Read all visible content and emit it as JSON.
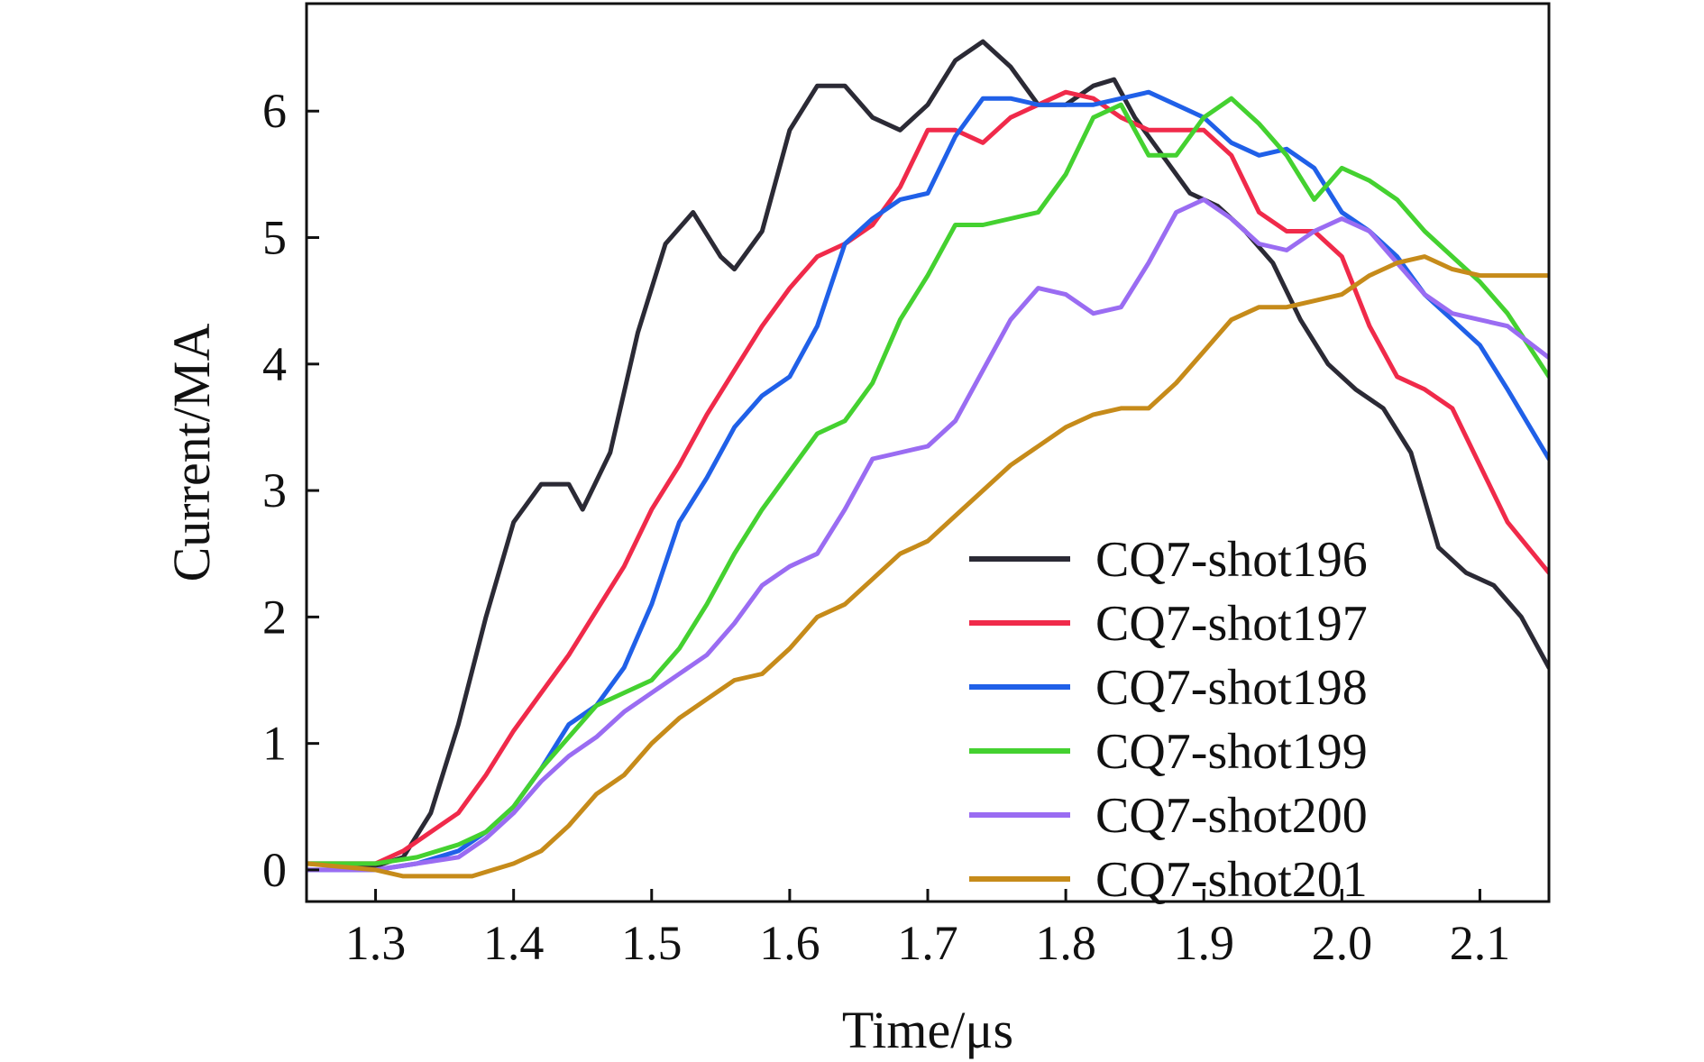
{
  "chart_data": {
    "type": "line",
    "title": "",
    "xlabel": "Time/μs",
    "ylabel": "Current/MA",
    "xlim": [
      1.25,
      2.15
    ],
    "ylim": [
      -0.25,
      6.85
    ],
    "xticks": [
      1.3,
      1.4,
      1.5,
      1.6,
      1.7,
      1.8,
      1.9,
      2.0,
      2.1
    ],
    "xtick_labels": [
      "1.3",
      "1.4",
      "1.5",
      "1.6",
      "1.7",
      "1.8",
      "1.9",
      "2.0",
      "2.1"
    ],
    "yticks": [
      0,
      1,
      2,
      3,
      4,
      5,
      6
    ],
    "ytick_labels": [
      "0",
      "1",
      "2",
      "3",
      "4",
      "5",
      "6"
    ],
    "grid": false,
    "legend_position": "bottom-right",
    "series": [
      {
        "name": "CQ7-shot196",
        "color": "#2b2a35",
        "x": [
          1.25,
          1.28,
          1.3,
          1.32,
          1.34,
          1.36,
          1.38,
          1.4,
          1.42,
          1.44,
          1.45,
          1.47,
          1.49,
          1.51,
          1.53,
          1.55,
          1.56,
          1.58,
          1.6,
          1.62,
          1.64,
          1.66,
          1.68,
          1.7,
          1.72,
          1.74,
          1.76,
          1.78,
          1.8,
          1.82,
          1.835,
          1.85,
          1.87,
          1.89,
          1.91,
          1.93,
          1.95,
          1.97,
          1.99,
          2.01,
          2.03,
          2.05,
          2.07,
          2.09,
          2.11,
          2.13,
          2.15
        ],
        "y": [
          0.05,
          0.03,
          0.03,
          0.1,
          0.45,
          1.15,
          2.0,
          2.75,
          3.05,
          3.05,
          2.85,
          3.3,
          4.25,
          4.95,
          5.2,
          4.85,
          4.75,
          5.05,
          5.85,
          6.2,
          6.2,
          5.95,
          5.85,
          6.05,
          6.4,
          6.55,
          6.35,
          6.05,
          6.05,
          6.2,
          6.25,
          5.95,
          5.65,
          5.35,
          5.25,
          5.05,
          4.8,
          4.35,
          4.0,
          3.8,
          3.65,
          3.3,
          2.55,
          2.35,
          2.25,
          2.0,
          1.6
        ]
      },
      {
        "name": "CQ7-shot197",
        "color": "#f02a4a",
        "x": [
          1.25,
          1.3,
          1.32,
          1.34,
          1.36,
          1.38,
          1.4,
          1.42,
          1.44,
          1.46,
          1.48,
          1.5,
          1.52,
          1.54,
          1.56,
          1.58,
          1.6,
          1.62,
          1.64,
          1.66,
          1.68,
          1.7,
          1.72,
          1.74,
          1.76,
          1.78,
          1.8,
          1.82,
          1.84,
          1.86,
          1.88,
          1.9,
          1.92,
          1.94,
          1.96,
          1.98,
          2.0,
          2.02,
          2.04,
          2.06,
          2.08,
          2.1,
          2.12,
          2.15
        ],
        "y": [
          0.05,
          0.05,
          0.15,
          0.3,
          0.45,
          0.75,
          1.1,
          1.4,
          1.7,
          2.05,
          2.4,
          2.85,
          3.2,
          3.6,
          3.95,
          4.3,
          4.6,
          4.85,
          4.95,
          5.1,
          5.4,
          5.85,
          5.85,
          5.75,
          5.95,
          6.05,
          6.15,
          6.1,
          5.95,
          5.85,
          5.85,
          5.85,
          5.65,
          5.2,
          5.05,
          5.05,
          4.85,
          4.3,
          3.9,
          3.8,
          3.65,
          3.2,
          2.75,
          2.35
        ]
      },
      {
        "name": "CQ7-shot198",
        "color": "#2060e8",
        "x": [
          1.25,
          1.3,
          1.33,
          1.36,
          1.38,
          1.4,
          1.42,
          1.44,
          1.46,
          1.48,
          1.5,
          1.52,
          1.54,
          1.56,
          1.58,
          1.6,
          1.62,
          1.64,
          1.66,
          1.68,
          1.7,
          1.72,
          1.74,
          1.76,
          1.78,
          1.8,
          1.82,
          1.84,
          1.86,
          1.88,
          1.9,
          1.92,
          1.94,
          1.96,
          1.98,
          2.0,
          2.02,
          2.04,
          2.06,
          2.08,
          2.1,
          2.12,
          2.15
        ],
        "y": [
          0.0,
          0.0,
          0.05,
          0.15,
          0.3,
          0.5,
          0.8,
          1.15,
          1.3,
          1.6,
          2.1,
          2.75,
          3.1,
          3.5,
          3.75,
          3.9,
          4.3,
          4.95,
          5.15,
          5.3,
          5.35,
          5.8,
          6.1,
          6.1,
          6.05,
          6.05,
          6.05,
          6.1,
          6.15,
          6.05,
          5.95,
          5.75,
          5.65,
          5.7,
          5.55,
          5.2,
          5.05,
          4.85,
          4.55,
          4.35,
          4.15,
          3.8,
          3.25
        ]
      },
      {
        "name": "CQ7-shot199",
        "color": "#44d130",
        "x": [
          1.25,
          1.3,
          1.33,
          1.36,
          1.38,
          1.4,
          1.42,
          1.44,
          1.46,
          1.48,
          1.5,
          1.52,
          1.54,
          1.56,
          1.58,
          1.6,
          1.62,
          1.64,
          1.66,
          1.68,
          1.7,
          1.72,
          1.74,
          1.76,
          1.78,
          1.8,
          1.82,
          1.84,
          1.86,
          1.88,
          1.9,
          1.92,
          1.94,
          1.96,
          1.98,
          2.0,
          2.02,
          2.04,
          2.06,
          2.08,
          2.1,
          2.12,
          2.15
        ],
        "y": [
          0.05,
          0.05,
          0.1,
          0.2,
          0.3,
          0.5,
          0.8,
          1.05,
          1.3,
          1.4,
          1.5,
          1.75,
          2.1,
          2.5,
          2.85,
          3.15,
          3.45,
          3.55,
          3.85,
          4.35,
          4.7,
          5.1,
          5.1,
          5.15,
          5.2,
          5.5,
          5.95,
          6.05,
          5.65,
          5.65,
          5.95,
          6.1,
          5.9,
          5.65,
          5.3,
          5.55,
          5.45,
          5.3,
          5.05,
          4.85,
          4.65,
          4.4,
          3.9
        ]
      },
      {
        "name": "CQ7-shot200",
        "color": "#9a6cf2",
        "x": [
          1.25,
          1.3,
          1.33,
          1.36,
          1.38,
          1.4,
          1.42,
          1.44,
          1.46,
          1.48,
          1.5,
          1.52,
          1.54,
          1.56,
          1.58,
          1.6,
          1.62,
          1.64,
          1.66,
          1.68,
          1.7,
          1.72,
          1.74,
          1.76,
          1.78,
          1.8,
          1.82,
          1.84,
          1.86,
          1.88,
          1.9,
          1.92,
          1.94,
          1.96,
          1.98,
          2.0,
          2.02,
          2.04,
          2.06,
          2.08,
          2.1,
          2.12,
          2.15
        ],
        "y": [
          0.0,
          0.0,
          0.05,
          0.1,
          0.25,
          0.45,
          0.7,
          0.9,
          1.05,
          1.25,
          1.4,
          1.55,
          1.7,
          1.95,
          2.25,
          2.4,
          2.5,
          2.85,
          3.25,
          3.3,
          3.35,
          3.55,
          3.95,
          4.35,
          4.6,
          4.55,
          4.4,
          4.45,
          4.8,
          5.2,
          5.3,
          5.15,
          4.95,
          4.9,
          5.05,
          5.15,
          5.05,
          4.8,
          4.55,
          4.4,
          4.35,
          4.3,
          4.05
        ]
      },
      {
        "name": "CQ7-shot201",
        "color": "#c68b1a",
        "x": [
          1.25,
          1.3,
          1.32,
          1.34,
          1.37,
          1.4,
          1.42,
          1.44,
          1.46,
          1.48,
          1.5,
          1.52,
          1.54,
          1.56,
          1.58,
          1.6,
          1.62,
          1.64,
          1.66,
          1.68,
          1.7,
          1.72,
          1.74,
          1.76,
          1.78,
          1.8,
          1.82,
          1.84,
          1.86,
          1.88,
          1.9,
          1.92,
          1.94,
          1.96,
          1.98,
          2.0,
          2.02,
          2.04,
          2.06,
          2.08,
          2.1,
          2.12,
          2.15
        ],
        "y": [
          0.05,
          0.0,
          -0.05,
          -0.05,
          -0.05,
          0.05,
          0.15,
          0.35,
          0.6,
          0.75,
          1.0,
          1.2,
          1.35,
          1.5,
          1.55,
          1.75,
          2.0,
          2.1,
          2.3,
          2.5,
          2.6,
          2.8,
          3.0,
          3.2,
          3.35,
          3.5,
          3.6,
          3.65,
          3.65,
          3.85,
          4.1,
          4.35,
          4.45,
          4.45,
          4.5,
          4.55,
          4.7,
          4.8,
          4.85,
          4.75,
          4.7,
          4.7,
          4.7
        ]
      }
    ]
  }
}
